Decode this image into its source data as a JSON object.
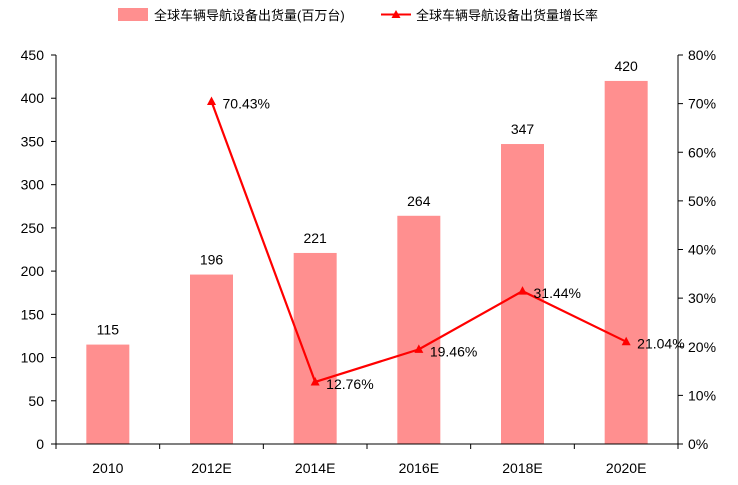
{
  "chart_data": {
    "type": "bar",
    "categories": [
      "2010",
      "2012E",
      "2014E",
      "2016E",
      "2018E",
      "2020E"
    ],
    "series": [
      {
        "name": "全球车辆导航设备出货量(百万台)",
        "type": "bar",
        "axis": "left",
        "color": "#ff8f8f",
        "values": [
          115,
          196,
          221,
          264,
          347,
          420
        ],
        "labels": [
          "115",
          "196",
          "221",
          "264",
          "347",
          "420"
        ]
      },
      {
        "name": "全球车辆导航设备出货量增长率",
        "type": "line",
        "axis": "right",
        "color": "#ff0000",
        "marker": "triangle",
        "values": [
          null,
          70.43,
          12.76,
          19.46,
          31.44,
          21.04
        ],
        "labels": [
          "",
          "70.43%",
          "12.76%",
          "19.46%",
          "31.44%",
          "21.04%"
        ]
      }
    ],
    "y_left": {
      "ylim": [
        0,
        450
      ],
      "ticks": [
        "0",
        "50",
        "100",
        "150",
        "200",
        "250",
        "300",
        "350",
        "400",
        "450"
      ]
    },
    "y_right": {
      "ylim": [
        0,
        80
      ],
      "ticks": [
        "0%",
        "10%",
        "20%",
        "30%",
        "40%",
        "50%",
        "60%",
        "70%",
        "80%"
      ]
    },
    "legend_position": "top",
    "grid": false
  }
}
